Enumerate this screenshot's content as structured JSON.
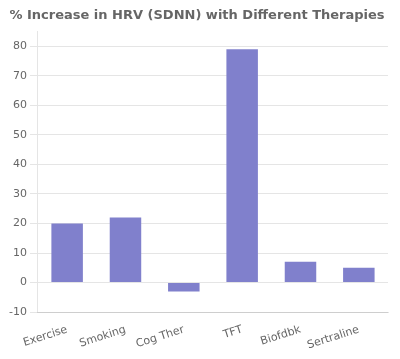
{
  "chart_data": {
    "type": "bar",
    "title": "% Increase in HRV (SDNN) with Different Therapies",
    "categories": [
      "Exercise",
      "Smoking",
      "Cog Ther",
      "TFT",
      "Biofdbk",
      "Sertraline"
    ],
    "values": [
      20,
      22,
      -3,
      79,
      7,
      5
    ],
    "color": "#8080CC",
    "ylim": [
      -10,
      85
    ],
    "yticks": [
      -10,
      0,
      10,
      20,
      30,
      40,
      50,
      60,
      70,
      80
    ],
    "grid": true
  }
}
